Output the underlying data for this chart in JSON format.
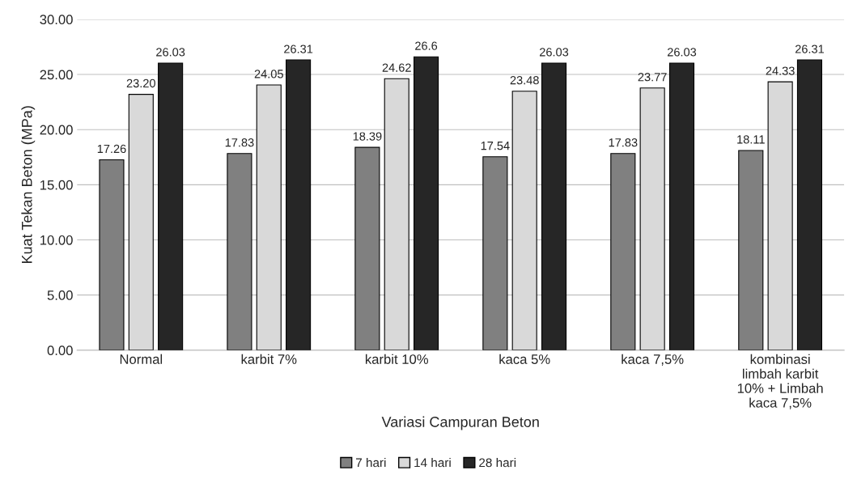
{
  "chart_data": {
    "type": "bar",
    "xlabel": "Variasi Campuran Beton",
    "ylabel": "Kuat Tekan Beton (MPa)",
    "categories": [
      "Normal",
      "karbit 7%",
      "karbit 10%",
      "kaca 5%",
      "kaca 7,5%",
      "kombinasi\nlimbah karbit\n10% + Limbah\nkaca 7,5%"
    ],
    "series": [
      {
        "name": "7 hari",
        "color": "#808080",
        "values": [
          17.26,
          17.83,
          18.39,
          17.54,
          17.83,
          18.11
        ],
        "value_labels": [
          "17.26",
          "17.83",
          "18.39",
          "17.54",
          "17.83",
          "18.11"
        ]
      },
      {
        "name": "14 hari",
        "color": "#d9d9d9",
        "values": [
          23.2,
          24.05,
          24.62,
          23.48,
          23.77,
          24.33
        ],
        "value_labels": [
          "23.20",
          "24.05",
          "24.62",
          "23.48",
          "23.77",
          "24.33"
        ]
      },
      {
        "name": "28 hari",
        "color": "#262626",
        "values": [
          26.03,
          26.31,
          26.6,
          26.03,
          26.03,
          26.31
        ],
        "value_labels": [
          "26.03",
          "26.31",
          "26.6",
          "26.03",
          "26.03",
          "26.31"
        ]
      }
    ],
    "ylim": [
      0,
      30
    ],
    "yticks": [
      {
        "value": 0,
        "label": "0.00"
      },
      {
        "value": 5,
        "label": "5.00"
      },
      {
        "value": 10,
        "label": "10.00"
      },
      {
        "value": 15,
        "label": "15.00"
      },
      {
        "value": 20,
        "label": "20.00"
      },
      {
        "value": 25,
        "label": "25.00"
      },
      {
        "value": 30,
        "label": "30.00"
      }
    ],
    "grid": "y",
    "legend": "bottom"
  }
}
